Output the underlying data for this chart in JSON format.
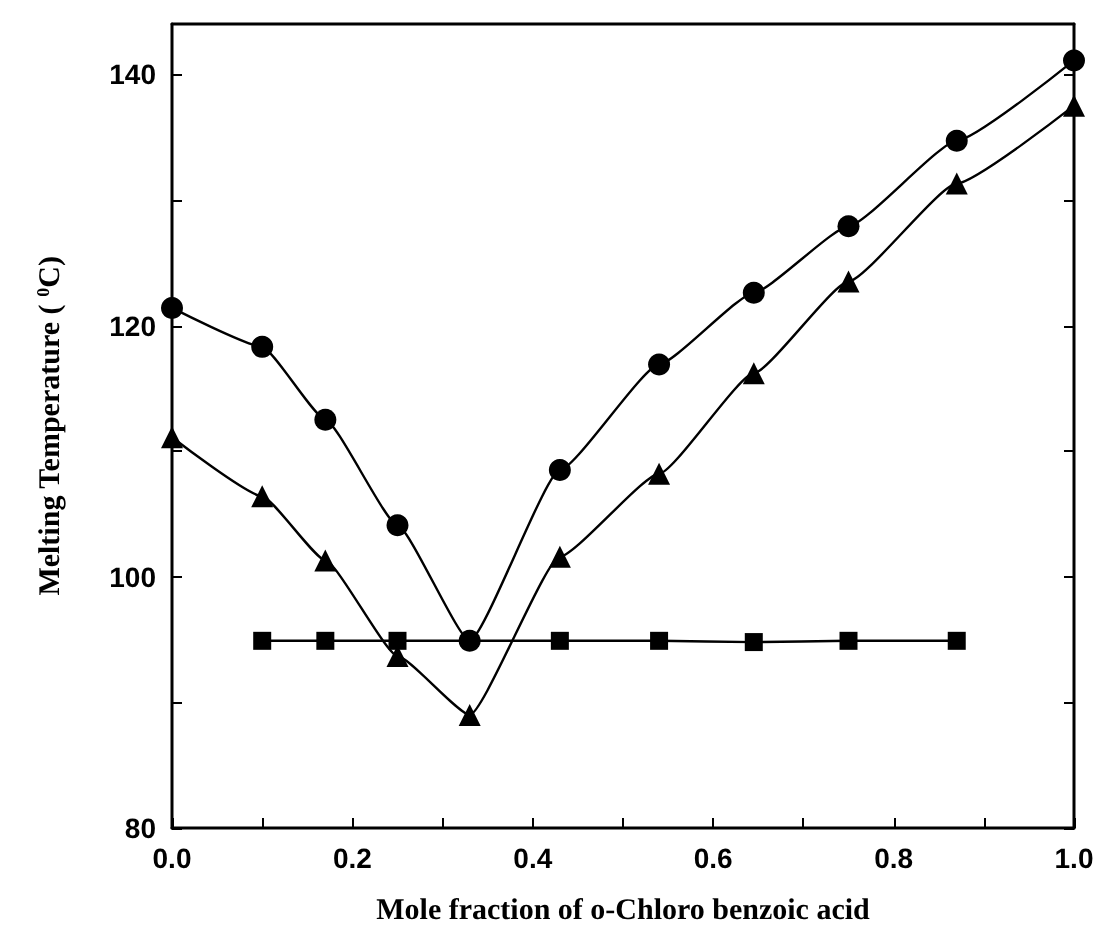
{
  "chart_data": {
    "type": "line",
    "xlabel": "Mole fraction of o-Chloro benzoic acid",
    "ylabel": "Melting Temperature ( $^{0}$C)",
    "xlim": [
      0,
      1
    ],
    "xticks": [
      {
        "value": 0,
        "label": "0.0"
      },
      {
        "value": 0.1,
        "label": null
      },
      {
        "value": 0.2,
        "label": "0.2"
      },
      {
        "value": 0.3,
        "label": null
      },
      {
        "value": 0.4,
        "label": "0.4"
      },
      {
        "value": 0.5,
        "label": null
      },
      {
        "value": 0.6,
        "label": "0.6"
      },
      {
        "value": 0.7,
        "label": null
      },
      {
        "value": 0.8,
        "label": "0.8"
      },
      {
        "value": 0.9,
        "label": null
      },
      {
        "value": 1,
        "label": "1.0"
      }
    ],
    "ylim": [
      80,
      144
    ],
    "yticks": [
      80,
      {
        "value": 90,
        "label": null
      },
      100,
      {
        "value": 110,
        "label": null
      },
      120,
      {
        "value": 130,
        "label": null
      },
      140
    ],
    "line_style": "solid",
    "series": [
      {
        "color": "#000000",
        "marker": "circle",
        "x": [
          0,
          0.1,
          0.17,
          0.25,
          0.33,
          0.43,
          0.54,
          0.645,
          0.75,
          0.87,
          1.0
        ],
        "values": [
          121.4,
          118.3,
          112.5,
          104.1,
          94.9,
          108.5,
          116.9,
          122.6,
          127.9,
          134.7,
          141.1
        ]
      },
      {
        "color": "#000000",
        "marker": "triangle",
        "x": [
          0,
          0.1,
          0.17,
          0.25,
          0.33,
          0.43,
          0.54,
          0.645,
          0.75,
          0.87,
          1.0
        ],
        "values": [
          111.1,
          106.4,
          101.3,
          93.7,
          89,
          101.6,
          108.2,
          116.2,
          123.5,
          131.3,
          137.5
        ]
      },
      {
        "color": "#000000",
        "marker": "square",
        "x": [
          0.1,
          0.17,
          0.25,
          0.43,
          0.54,
          0.645,
          0.75,
          0.87
        ],
        "values": [
          94.9,
          94.9,
          94.9,
          94.9,
          94.9,
          94.8,
          94.9,
          94.9
        ]
      }
    ]
  }
}
